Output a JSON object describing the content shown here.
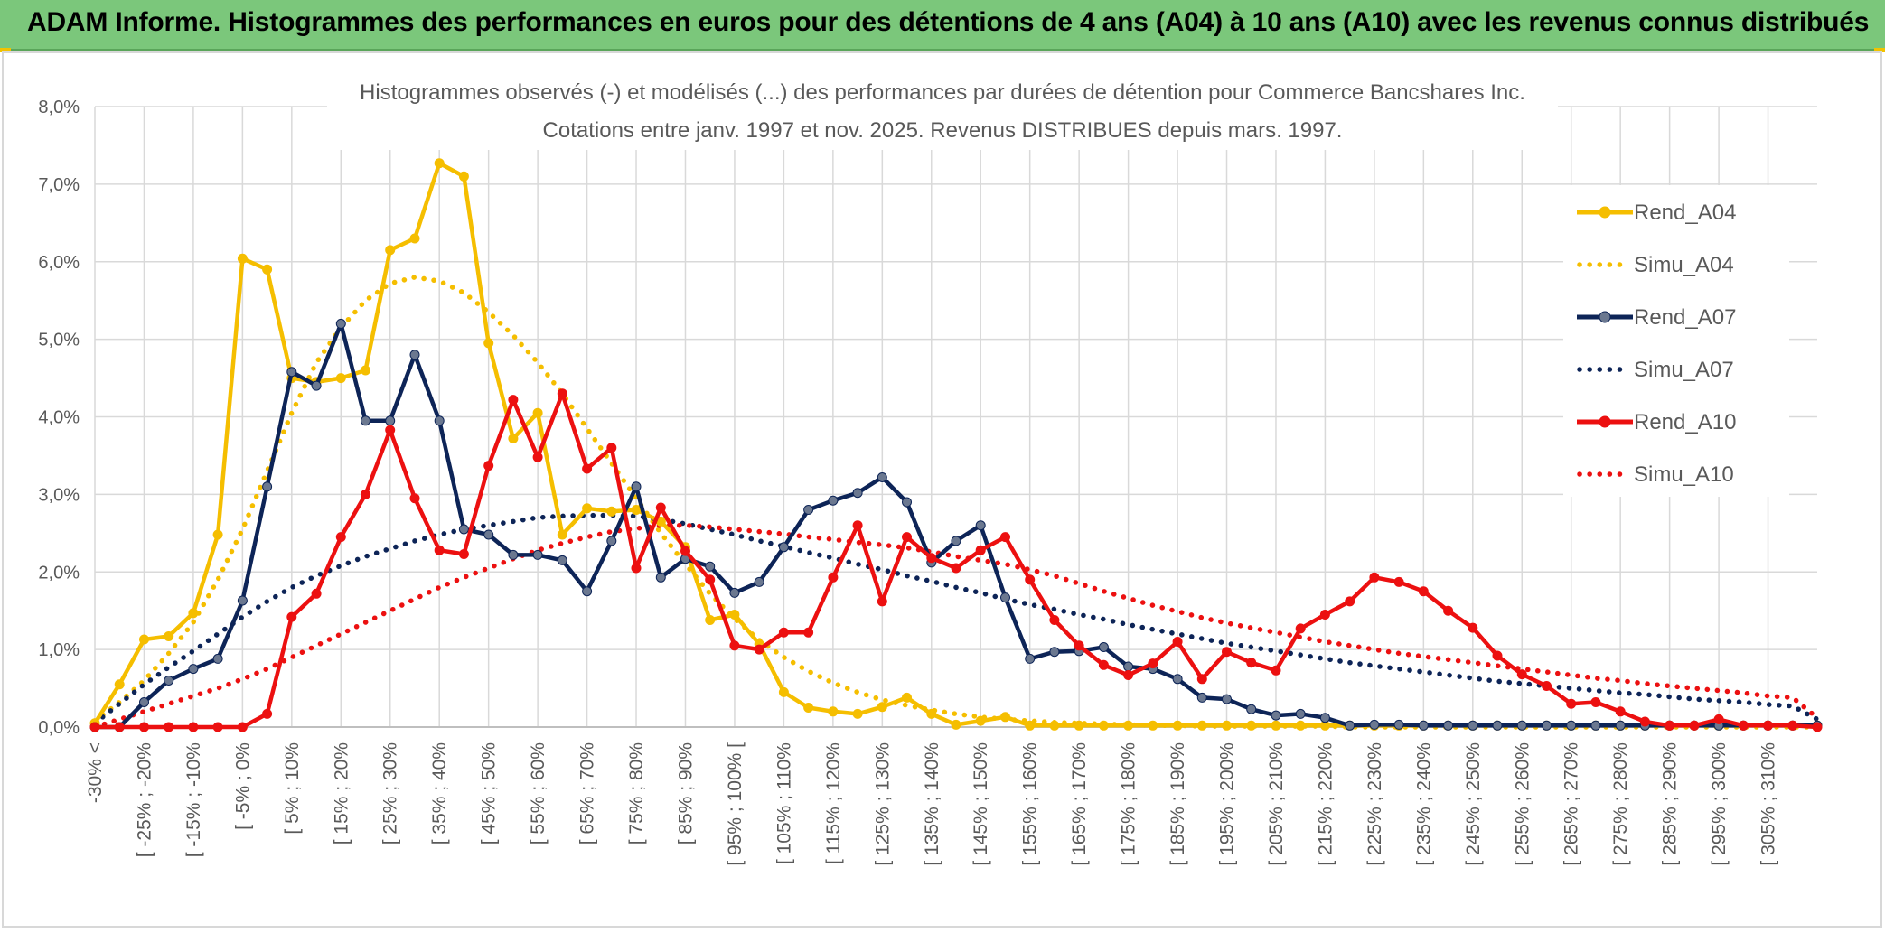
{
  "header": {
    "title": "ADAM Informe. Histogrammes des performances en euros pour des détentions de 4 ans (A04) à 10 ans (A10) avec les revenus connus distribués"
  },
  "chart_data": {
    "type": "line",
    "title": "Histogrammes observés (-) et modélisés (...) des performances par durées de détention pour Commerce Bancshares Inc.",
    "subtitle": "Cotations entre janv. 1997 et nov. 2025. Revenus DISTRIBUES depuis mars. 1997.",
    "ylim": [
      0,
      8
    ],
    "y_ticks": [
      "0,0%",
      "1,0%",
      "2,0%",
      "3,0%",
      "4,0%",
      "5,0%",
      "6,0%",
      "7,0%",
      "8,0%"
    ],
    "x_labels": [
      "-30% <",
      "[ -25% ; -20%",
      "[ -15% ; -10%",
      "[ -5% ; 0%",
      "[ 5% ; 10%",
      "[ 15% ; 20%",
      "[ 25% ; 30%",
      "[ 35% ; 40%",
      "[ 45% ; 50%",
      "[ 55% ; 60%",
      "[ 65% ; 70%",
      "[ 75% ; 80%",
      "[ 85% ; 90%",
      "[ 95% ; 100% [",
      "[ 105% ; 110%",
      "[ 115% ; 120%",
      "[ 125% ; 130%",
      "[ 135% ; 140%",
      "[ 145% ; 150%",
      "[ 155% ; 160%",
      "[ 165% ; 170%",
      "[ 175% ; 180%",
      "[ 185% ; 190%",
      "[ 195% ; 200%",
      "[ 205% ; 210%",
      "[ 215% ; 220%",
      "[ 225% ; 230%",
      "[ 235% ; 240%",
      "[ 245% ; 250%",
      "[ 255% ; 260%",
      "[ 265% ; 270%",
      "[ 275% ; 280%",
      "[ 285% ; 290%",
      "[ 295% ; 300%",
      "[ 305% ; 310%"
    ],
    "legend_position": "right",
    "grid": true,
    "series": [
      {
        "name": "Rend_A04",
        "style": "solid",
        "color": "#f5be00",
        "values": [
          0.05,
          0.55,
          1.13,
          1.17,
          1.47,
          2.48,
          6.04,
          5.9,
          4.5,
          4.45,
          4.5,
          4.6,
          6.15,
          6.3,
          7.27,
          7.1,
          4.95,
          3.72,
          4.05,
          2.48,
          2.82,
          2.78,
          2.8,
          2.65,
          2.32,
          1.38,
          1.45,
          1.07,
          0.45,
          0.25,
          0.2,
          0.17,
          0.26,
          0.38,
          0.17,
          0.03,
          0.08,
          0.13,
          0.02,
          0.02,
          0.02,
          0.02,
          0.02,
          0.02,
          0.02,
          0.02,
          0.02,
          0.02,
          0.02,
          0.02,
          0.02,
          0.02,
          0.02,
          0.02,
          0.02,
          0.02,
          0.02,
          0.02,
          0.02,
          0.02,
          0.02,
          0.02,
          0.02,
          0.02,
          0.02,
          0.02,
          0.02,
          0.02,
          0.02,
          0.02,
          0.02
        ]
      },
      {
        "name": "Simu_A04",
        "style": "dotted",
        "color": "#f5be00",
        "values": [
          0.08,
          0.32,
          0.6,
          0.95,
          1.35,
          1.9,
          2.55,
          3.3,
          4.05,
          4.7,
          5.15,
          5.5,
          5.72,
          5.8,
          5.75,
          5.6,
          5.35,
          5.05,
          4.7,
          4.3,
          3.85,
          3.4,
          2.95,
          2.5,
          2.1,
          1.72,
          1.4,
          1.12,
          0.9,
          0.72,
          0.57,
          0.45,
          0.35,
          0.28,
          0.22,
          0.17,
          0.13,
          0.1,
          0.08,
          0.06,
          0.05,
          0.04,
          0.03,
          0.02,
          0.02,
          0.01,
          0.01,
          0.01,
          0.01,
          0.01,
          0.01,
          0.0,
          0.0,
          0.0,
          0.0,
          0.0,
          0.0,
          0.0,
          0.0,
          0.0,
          0.0,
          0.0,
          0.0,
          0.0,
          0.0,
          0.0,
          0.0,
          0.0,
          0.0,
          0.0,
          0.0
        ]
      },
      {
        "name": "Rend_A07",
        "style": "solid",
        "color": "#0d2457",
        "values": [
          0.0,
          0.0,
          0.32,
          0.6,
          0.75,
          0.88,
          1.63,
          3.1,
          4.58,
          4.4,
          5.2,
          3.95,
          3.95,
          4.8,
          3.95,
          2.55,
          2.48,
          2.22,
          2.22,
          2.15,
          1.75,
          2.4,
          3.1,
          1.93,
          2.17,
          2.07,
          1.73,
          1.87,
          2.32,
          2.8,
          2.92,
          3.02,
          3.22,
          2.9,
          2.12,
          2.4,
          2.6,
          1.67,
          0.88,
          0.97,
          0.98,
          1.03,
          0.78,
          0.75,
          0.62,
          0.38,
          0.36,
          0.23,
          0.15,
          0.17,
          0.12,
          0.02,
          0.03,
          0.03,
          0.02,
          0.02,
          0.02,
          0.02,
          0.02,
          0.02,
          0.02,
          0.02,
          0.02,
          0.02,
          0.02,
          0.02,
          0.02,
          0.02,
          0.02,
          0.02,
          0.02
        ]
      },
      {
        "name": "Simu_A07",
        "style": "dotted",
        "color": "#0d2457",
        "values": [
          0.05,
          0.3,
          0.55,
          0.77,
          0.98,
          1.2,
          1.42,
          1.62,
          1.8,
          1.95,
          2.08,
          2.2,
          2.3,
          2.4,
          2.48,
          2.55,
          2.6,
          2.65,
          2.7,
          2.72,
          2.73,
          2.73,
          2.72,
          2.68,
          2.62,
          2.55,
          2.48,
          2.4,
          2.33,
          2.25,
          2.18,
          2.1,
          2.03,
          1.95,
          1.88,
          1.8,
          1.73,
          1.65,
          1.58,
          1.52,
          1.45,
          1.39,
          1.32,
          1.26,
          1.2,
          1.14,
          1.08,
          1.03,
          0.98,
          0.93,
          0.88,
          0.83,
          0.79,
          0.75,
          0.71,
          0.67,
          0.63,
          0.59,
          0.56,
          0.53,
          0.5,
          0.47,
          0.44,
          0.42,
          0.39,
          0.36,
          0.34,
          0.32,
          0.29,
          0.27,
          0.1
        ]
      },
      {
        "name": "Rend_A10",
        "style": "solid",
        "color": "#ec1010",
        "values": [
          0.0,
          0.0,
          0.0,
          0.0,
          0.0,
          0.0,
          0.0,
          0.17,
          1.42,
          1.72,
          2.45,
          3.0,
          3.83,
          2.95,
          2.28,
          2.23,
          3.37,
          4.22,
          3.48,
          4.3,
          3.33,
          3.6,
          2.05,
          2.83,
          2.27,
          1.9,
          1.05,
          1.0,
          1.22,
          1.22,
          1.93,
          2.6,
          1.62,
          2.45,
          2.18,
          2.05,
          2.28,
          2.45,
          1.9,
          1.38,
          1.05,
          0.8,
          0.67,
          0.82,
          1.1,
          0.62,
          0.97,
          0.83,
          0.73,
          1.27,
          1.45,
          1.62,
          1.93,
          1.87,
          1.75,
          1.5,
          1.28,
          0.92,
          0.68,
          0.53,
          0.3,
          0.32,
          0.2,
          0.07,
          0.02,
          0.02,
          0.1,
          0.02,
          0.02,
          0.02,
          0.0
        ]
      },
      {
        "name": "Simu_A10",
        "style": "dotted",
        "color": "#ec1010",
        "values": [
          0.0,
          0.1,
          0.2,
          0.3,
          0.4,
          0.5,
          0.62,
          0.75,
          0.9,
          1.05,
          1.2,
          1.35,
          1.5,
          1.65,
          1.8,
          1.93,
          2.05,
          2.17,
          2.28,
          2.37,
          2.45,
          2.52,
          2.56,
          2.6,
          2.6,
          2.58,
          2.55,
          2.52,
          2.49,
          2.45,
          2.42,
          2.38,
          2.35,
          2.31,
          2.26,
          2.2,
          2.15,
          2.1,
          2.03,
          1.95,
          1.85,
          1.75,
          1.66,
          1.57,
          1.49,
          1.41,
          1.34,
          1.28,
          1.22,
          1.16,
          1.1,
          1.05,
          1.0,
          0.95,
          0.91,
          0.87,
          0.83,
          0.79,
          0.75,
          0.71,
          0.67,
          0.63,
          0.6,
          0.56,
          0.53,
          0.5,
          0.47,
          0.44,
          0.4,
          0.38,
          0.12
        ]
      }
    ]
  }
}
